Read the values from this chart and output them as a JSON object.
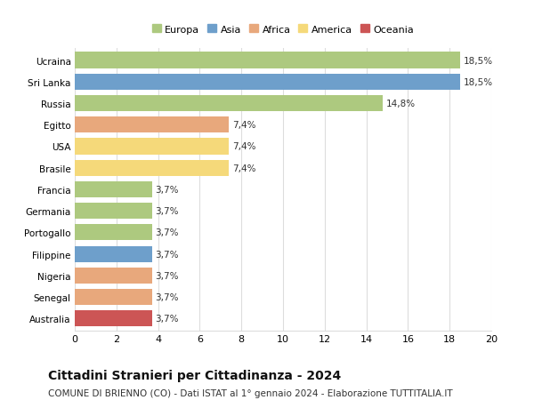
{
  "countries": [
    "Ucraina",
    "Sri Lanka",
    "Russia",
    "Egitto",
    "USA",
    "Brasile",
    "Francia",
    "Germania",
    "Portogallo",
    "Filippine",
    "Nigeria",
    "Senegal",
    "Australia"
  ],
  "values": [
    18.5,
    18.5,
    14.8,
    7.4,
    7.4,
    7.4,
    3.7,
    3.7,
    3.7,
    3.7,
    3.7,
    3.7,
    3.7
  ],
  "labels": [
    "18,5%",
    "18,5%",
    "14,8%",
    "7,4%",
    "7,4%",
    "7,4%",
    "3,7%",
    "3,7%",
    "3,7%",
    "3,7%",
    "3,7%",
    "3,7%",
    "3,7%"
  ],
  "colors": [
    "#adc97f",
    "#6e9fcb",
    "#adc97f",
    "#e8a87c",
    "#f5d97a",
    "#f5d97a",
    "#adc97f",
    "#adc97f",
    "#adc97f",
    "#6e9fcb",
    "#e8a87c",
    "#e8a87c",
    "#cc5555"
  ],
  "legend_labels": [
    "Europa",
    "Asia",
    "Africa",
    "America",
    "Oceania"
  ],
  "legend_colors": [
    "#adc97f",
    "#6e9fcb",
    "#e8a87c",
    "#f5d97a",
    "#cc5555"
  ],
  "xlim": [
    0,
    20
  ],
  "xticks": [
    0,
    2,
    4,
    6,
    8,
    10,
    12,
    14,
    16,
    18,
    20
  ],
  "title": "Cittadini Stranieri per Cittadinanza - 2024",
  "subtitle": "COMUNE DI BRIENNO (CO) - Dati ISTAT al 1° gennaio 2024 - Elaborazione TUTTITALIA.IT",
  "title_fontsize": 10,
  "subtitle_fontsize": 7.5,
  "bar_height": 0.75,
  "label_fontsize": 7.5,
  "ytick_fontsize": 7.5,
  "xtick_fontsize": 8,
  "background_color": "#ffffff",
  "grid_color": "#dddddd"
}
